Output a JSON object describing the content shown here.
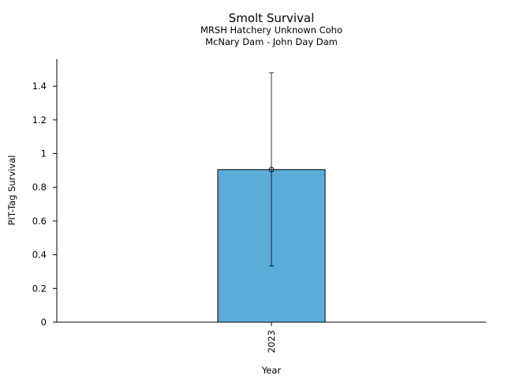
{
  "chart_data": {
    "type": "bar",
    "title": "Smolt Survival",
    "subtitle_lines": [
      "MRSH Hatchery Unknown Coho",
      "McNary Dam - John Day Dam"
    ],
    "xlabel": "Year",
    "ylabel": "PIT-Tag Survival",
    "categories": [
      "2023"
    ],
    "values": [
      0.905
    ],
    "error_low": [
      0.333
    ],
    "error_high": [
      1.48
    ],
    "ylim": [
      0,
      1.56
    ],
    "yticks": [
      0,
      0.2,
      0.4,
      0.6,
      0.8,
      1,
      1.2,
      1.4
    ],
    "ytick_labels": [
      "0",
      "0.2",
      "0.4",
      "0.6",
      "0.8",
      "1",
      "1.2",
      "1.4"
    ],
    "bar_color": "#5bacd8",
    "grid": false
  }
}
